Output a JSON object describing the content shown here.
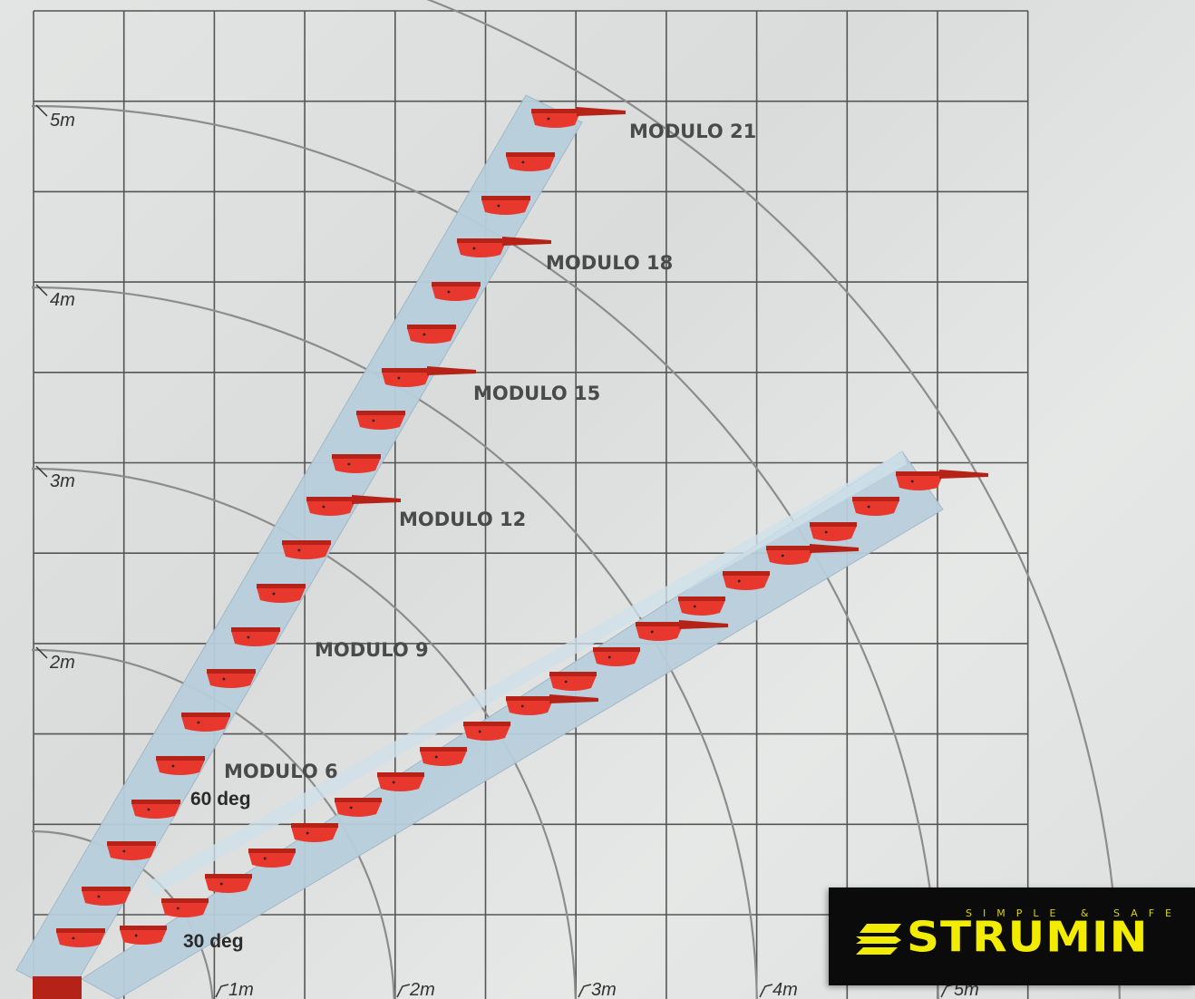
{
  "diagram": {
    "y_axis_labels": [
      "5m",
      "4m",
      "3m",
      "2m"
    ],
    "x_axis_labels": [
      "1m",
      "2m",
      "3m",
      "4m",
      "5m"
    ],
    "module_labels": [
      "MODULO 21",
      "MODULO 18",
      "MODULO 15",
      "MODULO 12",
      "MODULO 9",
      "MODULO 6"
    ],
    "angle_labels": [
      "60 deg",
      "30 deg"
    ],
    "colors": {
      "grid": "#555555",
      "arc": "#8c8c8c",
      "rail": "#b9cfdc",
      "step": "#e8372c",
      "step_dark": "#b52218"
    }
  },
  "logo": {
    "tagline": "SIMPLE & SAFE",
    "brand": "STRUMIN",
    "color": "#f2ec00"
  }
}
